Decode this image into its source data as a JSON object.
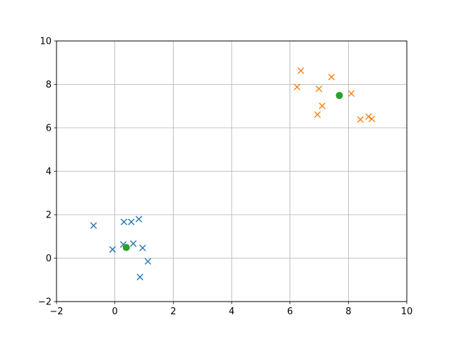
{
  "chart_data": {
    "type": "scatter",
    "title": "",
    "xlabel": "",
    "ylabel": "",
    "xlim": [
      -2,
      10
    ],
    "ylim": [
      -2,
      10
    ],
    "grid": true,
    "xticks": [
      "−2",
      "0",
      "2",
      "4",
      "6",
      "8",
      "10"
    ],
    "yticks": [
      "−2",
      "0",
      "2",
      "4",
      "6",
      "8",
      "10"
    ],
    "xtick_values": [
      -2,
      0,
      2,
      4,
      6,
      8,
      10
    ],
    "ytick_values": [
      -2,
      0,
      2,
      4,
      6,
      8,
      10
    ],
    "series": [
      {
        "marker": "x",
        "color": "#1f77b4",
        "points": [
          [
            -0.73,
            1.5
          ],
          [
            0.31,
            1.67
          ],
          [
            0.56,
            1.67
          ],
          [
            0.82,
            1.8
          ],
          [
            0.29,
            0.63
          ],
          [
            0.63,
            0.67
          ],
          [
            -0.08,
            0.4
          ],
          [
            0.95,
            0.47
          ],
          [
            1.13,
            -0.15
          ],
          [
            0.86,
            -0.87
          ]
        ]
      },
      {
        "marker": "x",
        "color": "#ff7f0e",
        "points": [
          [
            6.37,
            8.63
          ],
          [
            7.42,
            8.34
          ],
          [
            6.24,
            7.88
          ],
          [
            6.99,
            7.8
          ],
          [
            8.1,
            7.58
          ],
          [
            7.1,
            7.01
          ],
          [
            6.94,
            6.61
          ],
          [
            8.41,
            6.38
          ],
          [
            8.69,
            6.52
          ],
          [
            8.8,
            6.41
          ]
        ]
      },
      {
        "marker": "o",
        "color": "#2ca02c",
        "points": [
          [
            0.39,
            0.49
          ],
          [
            7.69,
            7.49
          ]
        ]
      }
    ]
  }
}
